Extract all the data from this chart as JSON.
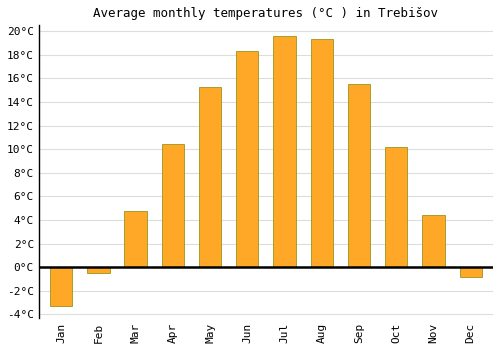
{
  "title": "Average monthly temperatures (°C ) in Trebišov",
  "months": [
    "Jan",
    "Feb",
    "Mar",
    "Apr",
    "May",
    "Jun",
    "Jul",
    "Aug",
    "Sep",
    "Oct",
    "Nov",
    "Dec"
  ],
  "values": [
    -3.3,
    -0.5,
    4.8,
    10.4,
    15.3,
    18.3,
    19.6,
    19.3,
    15.5,
    10.2,
    4.4,
    -0.8
  ],
  "bar_color": "#FFA726",
  "bar_edge_color": "#888800",
  "background_color": "#ffffff",
  "grid_color": "#dddddd",
  "ylim_min": -4,
  "ylim_max": 20,
  "yticks": [
    -4,
    -2,
    0,
    2,
    4,
    6,
    8,
    10,
    12,
    14,
    16,
    18,
    20
  ],
  "title_fontsize": 9,
  "tick_fontsize": 8
}
